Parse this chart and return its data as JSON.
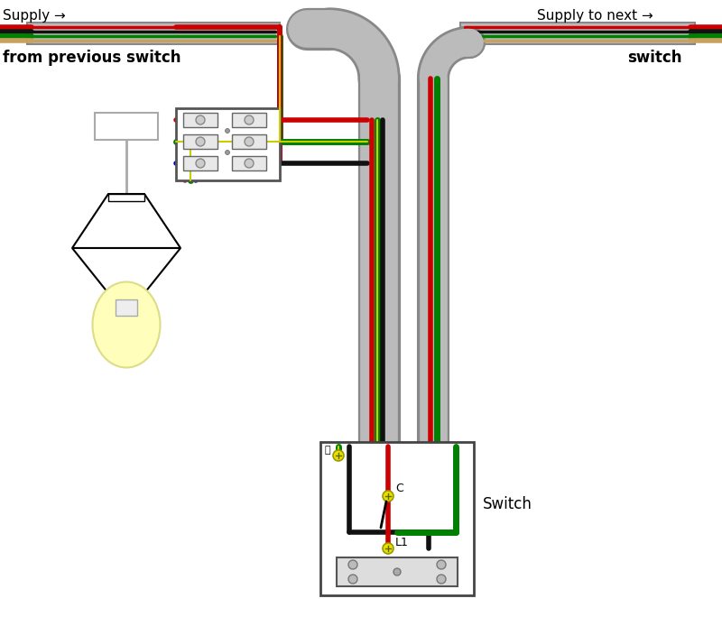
{
  "bg_color": "#ffffff",
  "supply_left_label": "Supply →",
  "supply_left_sub": "from previous switch",
  "supply_right_label": "Supply to next →",
  "supply_right_sub": "switch",
  "switch_label": "Switch",
  "wire_colors": {
    "red": "#cc0000",
    "black": "#111111",
    "green": "#008000",
    "yellow": "#cccc00",
    "blue": "#0000cc",
    "gray": "#bbbbbb",
    "gray_dark": "#888888",
    "white": "#ffffff",
    "light_yellow": "#ffffc0",
    "tan": "#c8a060"
  },
  "fig_width": 8.0,
  "fig_height": 6.94
}
